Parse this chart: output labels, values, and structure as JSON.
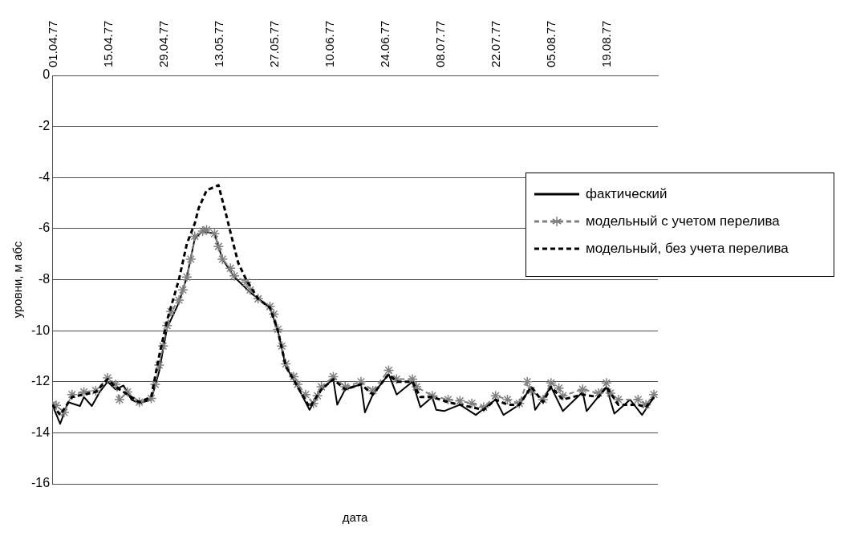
{
  "chart_data": {
    "type": "line",
    "xlabel": "дата",
    "ylabel": "уровни, м абс",
    "xlim": [
      "1977-04-01",
      "1977-09-01"
    ],
    "xticks": [
      {
        "value": "1977-04-01",
        "label": "01.04.77"
      },
      {
        "value": "1977-04-15",
        "label": "15.04.77"
      },
      {
        "value": "1977-04-29",
        "label": "29.04.77"
      },
      {
        "value": "1977-05-13",
        "label": "13.05.77"
      },
      {
        "value": "1977-05-27",
        "label": "27.05.77"
      },
      {
        "value": "1977-06-10",
        "label": "10.06.77"
      },
      {
        "value": "1977-06-24",
        "label": "24.06.77"
      },
      {
        "value": "1977-07-08",
        "label": "08.07.77"
      },
      {
        "value": "1977-07-22",
        "label": "22.07.77"
      },
      {
        "value": "1977-08-05",
        "label": "05.08.77"
      },
      {
        "value": "1977-08-19",
        "label": "19.08.77"
      }
    ],
    "ylim": [
      -16,
      0
    ],
    "yticks": [
      -16,
      -14,
      -12,
      -10,
      -8,
      -6,
      -4,
      -2,
      0
    ],
    "grid": "y",
    "legend": "right",
    "series": [
      {
        "name": "фактический",
        "color": "#000000",
        "line_style": "solid",
        "marker": "none",
        "x": [
          "1977-04-01",
          "1977-04-03",
          "1977-04-05",
          "1977-04-08",
          "1977-04-09",
          "1977-04-11",
          "1977-04-13",
          "1977-04-15",
          "1977-04-17",
          "1977-04-19",
          "1977-04-21",
          "1977-04-23",
          "1977-04-26",
          "1977-04-28",
          "1977-04-30",
          "1977-05-03",
          "1977-05-05",
          "1977-05-07",
          "1977-05-09",
          "1977-05-12",
          "1977-05-14",
          "1977-05-17",
          "1977-05-21",
          "1977-05-26",
          "1977-05-28",
          "1977-05-30",
          "1977-06-02",
          "1977-06-05",
          "1977-06-08",
          "1977-06-11",
          "1977-06-12",
          "1977-06-14",
          "1977-06-18",
          "1977-06-19",
          "1977-06-21",
          "1977-06-25",
          "1977-06-27",
          "1977-07-01",
          "1977-07-03",
          "1977-07-06",
          "1977-07-07",
          "1977-07-09",
          "1977-07-13",
          "1977-07-17",
          "1977-07-22",
          "1977-07-24",
          "1977-07-28",
          "1977-07-31",
          "1977-08-01",
          "1977-08-05",
          "1977-08-08",
          "1977-08-13",
          "1977-08-14",
          "1977-08-19",
          "1977-08-21",
          "1977-08-25",
          "1977-08-28",
          "1977-08-31"
        ],
        "values": [
          -12.9,
          -13.65,
          -12.8,
          -12.95,
          -12.6,
          -12.95,
          -12.4,
          -12.0,
          -12.3,
          -12.15,
          -12.7,
          -12.85,
          -12.7,
          -11.6,
          -9.9,
          -8.9,
          -7.9,
          -6.4,
          -6.1,
          -6.2,
          -7.2,
          -7.9,
          -8.5,
          -9.1,
          -10.0,
          -11.4,
          -12.2,
          -13.1,
          -12.3,
          -11.9,
          -12.9,
          -12.3,
          -12.1,
          -13.2,
          -12.5,
          -11.7,
          -12.5,
          -12.0,
          -13.0,
          -12.6,
          -13.1,
          -13.15,
          -12.9,
          -13.3,
          -12.7,
          -13.3,
          -12.9,
          -12.2,
          -13.1,
          -12.2,
          -13.15,
          -12.4,
          -13.15,
          -12.2,
          -13.25,
          -12.7,
          -13.3,
          -12.6
        ]
      },
      {
        "name": "модельный с учетом перелива",
        "color": "#808080",
        "line_style": "dashed",
        "marker": "cross",
        "x": [
          "1977-04-01",
          "1977-04-02",
          "1977-04-04",
          "1977-04-06",
          "1977-04-09",
          "1977-04-12",
          "1977-04-15",
          "1977-04-17",
          "1977-04-18",
          "1977-04-20",
          "1977-04-23",
          "1977-04-26",
          "1977-04-27",
          "1977-04-28",
          "1977-04-29",
          "1977-04-30",
          "1977-05-01",
          "1977-05-03",
          "1977-05-04",
          "1977-05-05",
          "1977-05-06",
          "1977-05-07",
          "1977-05-09",
          "1977-05-10",
          "1977-05-12",
          "1977-05-13",
          "1977-05-14",
          "1977-05-16",
          "1977-05-17",
          "1977-05-20",
          "1977-05-21",
          "1977-05-23",
          "1977-05-26",
          "1977-05-27",
          "1977-05-28",
          "1977-05-29",
          "1977-05-30",
          "1977-06-01",
          "1977-06-02",
          "1977-06-04",
          "1977-06-06",
          "1977-06-07",
          "1977-06-08",
          "1977-06-11",
          "1977-06-14",
          "1977-06-18",
          "1977-06-21",
          "1977-06-25",
          "1977-06-27",
          "1977-07-01",
          "1977-07-02",
          "1977-07-06",
          "1977-07-10",
          "1977-07-13",
          "1977-07-16",
          "1977-07-19",
          "1977-07-22",
          "1977-07-25",
          "1977-07-28",
          "1977-07-30",
          "1977-07-31",
          "1977-08-03",
          "1977-08-05",
          "1977-08-07",
          "1977-08-08",
          "1977-08-13",
          "1977-08-17",
          "1977-08-19",
          "1977-08-20",
          "1977-08-22",
          "1977-08-27",
          "1977-08-29",
          "1977-08-31"
        ],
        "values": [
          -12.9,
          -12.93,
          -13.2,
          -12.5,
          -12.4,
          -12.35,
          -11.85,
          -12.1,
          -12.7,
          -12.4,
          -12.8,
          -12.65,
          -12.1,
          -11.35,
          -10.6,
          -9.8,
          -9.25,
          -8.8,
          -8.4,
          -7.9,
          -7.2,
          -6.3,
          -6.1,
          -6.05,
          -6.2,
          -6.7,
          -7.2,
          -7.55,
          -7.85,
          -8.1,
          -8.4,
          -8.75,
          -9.05,
          -9.35,
          -9.95,
          -10.6,
          -11.3,
          -11.8,
          -12.1,
          -12.5,
          -12.85,
          -12.55,
          -12.2,
          -11.8,
          -12.2,
          -12.0,
          -12.35,
          -11.55,
          -11.9,
          -11.9,
          -12.2,
          -12.55,
          -12.7,
          -12.75,
          -12.85,
          -13.0,
          -12.55,
          -12.7,
          -12.85,
          -12.0,
          -12.35,
          -12.7,
          -12.05,
          -12.25,
          -12.55,
          -12.3,
          -12.45,
          -12.05,
          -12.45,
          -12.7,
          -12.7,
          -12.9,
          -12.5
        ]
      },
      {
        "name": "модельный, без учета перелива",
        "color": "#000000",
        "line_style": "dashed",
        "marker": "none",
        "x": [
          "1977-04-01",
          "1977-04-03",
          "1977-04-06",
          "1977-04-09",
          "1977-04-12",
          "1977-04-15",
          "1977-04-17",
          "1977-04-20",
          "1977-04-23",
          "1977-04-26",
          "1977-04-28",
          "1977-04-30",
          "1977-05-03",
          "1977-05-05",
          "1977-05-07",
          "1977-05-08",
          "1977-05-10",
          "1977-05-13",
          "1977-05-14",
          "1977-05-15",
          "1977-05-17",
          "1977-05-18",
          "1977-05-20",
          "1977-05-23",
          "1977-05-26",
          "1977-05-28",
          "1977-05-30",
          "1977-06-02",
          "1977-06-05",
          "1977-06-08",
          "1977-06-11",
          "1977-06-14",
          "1977-06-18",
          "1977-06-21",
          "1977-06-25",
          "1977-06-27",
          "1977-07-01",
          "1977-07-03",
          "1977-07-06",
          "1977-07-10",
          "1977-07-13",
          "1977-07-16",
          "1977-07-19",
          "1977-07-22",
          "1977-07-25",
          "1977-07-28",
          "1977-07-31",
          "1977-08-03",
          "1977-08-05",
          "1977-08-08",
          "1977-08-13",
          "1977-08-17",
          "1977-08-19",
          "1977-08-22",
          "1977-08-27",
          "1977-08-29",
          "1977-08-31"
        ],
        "values": [
          -12.9,
          -13.3,
          -12.6,
          -12.5,
          -12.4,
          -11.9,
          -12.2,
          -12.5,
          -12.8,
          -12.6,
          -11.0,
          -9.6,
          -8.0,
          -6.6,
          -5.8,
          -5.2,
          -4.5,
          -4.3,
          -4.9,
          -5.5,
          -6.75,
          -7.35,
          -8.0,
          -8.75,
          -9.1,
          -10.0,
          -11.4,
          -12.2,
          -13.0,
          -12.3,
          -11.9,
          -12.3,
          -12.1,
          -12.5,
          -11.7,
          -12.0,
          -12.0,
          -12.6,
          -12.6,
          -12.8,
          -12.9,
          -13.0,
          -13.1,
          -12.7,
          -12.9,
          -12.9,
          -12.2,
          -12.8,
          -12.2,
          -12.7,
          -12.5,
          -12.6,
          -12.2,
          -12.9,
          -12.9,
          -13.0,
          -12.6
        ]
      }
    ]
  }
}
